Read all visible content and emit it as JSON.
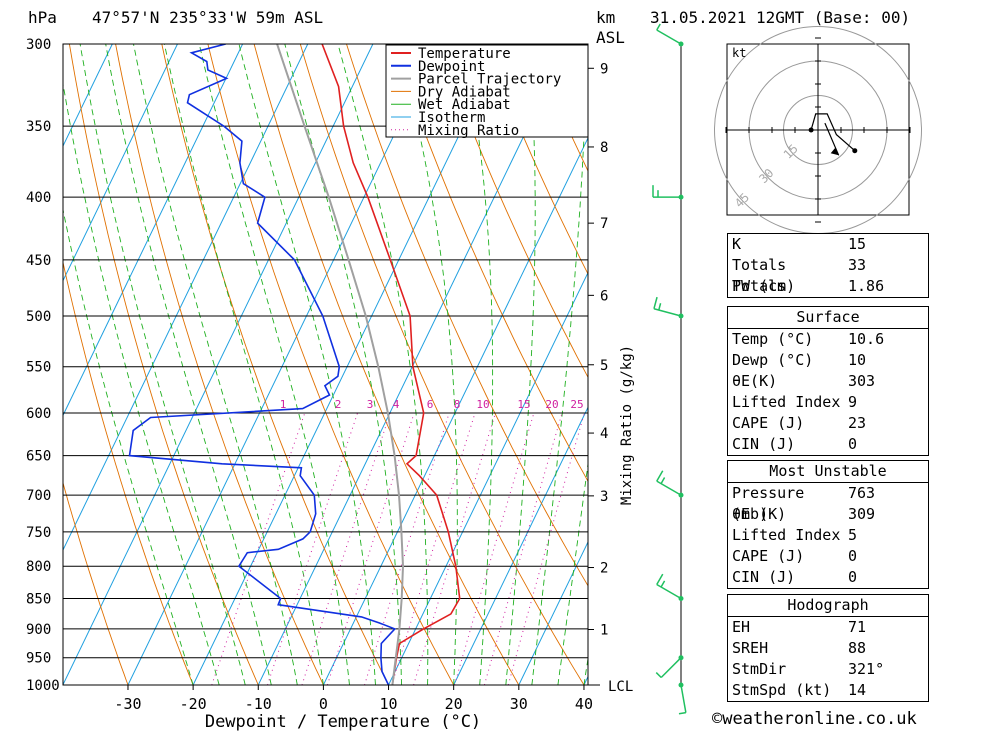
{
  "header": {
    "pressure_unit": "hPa",
    "location": "47°57'N  235°33'W  59m  ASL",
    "km_unit": "km",
    "asl": "ASL",
    "datetime": "31.05.2021  12GMT  (Base: 00)"
  },
  "chart_data": {
    "type": "line",
    "title": "",
    "xlabel": "Dewpoint / Temperature (°C)",
    "ylabel": "hPa",
    "xlim": [
      -40,
      40
    ],
    "ylim": [
      1000,
      300
    ],
    "pressure_ticks": [
      300,
      350,
      400,
      450,
      500,
      550,
      600,
      650,
      700,
      750,
      800,
      850,
      900,
      950,
      1000
    ],
    "temp_ticks": [
      -30,
      -20,
      -10,
      0,
      10,
      20,
      30,
      40
    ],
    "km_ticks": [
      "1",
      "2",
      "3",
      "4",
      "5",
      "6",
      "7",
      "8",
      "9"
    ],
    "lcl_label": "LCL",
    "mixing_ratio_axis_label": "Mixing Ratio (g/kg)",
    "mixing_ratio_labels": [
      "1",
      "2",
      "3",
      "4",
      "6",
      "8",
      "10",
      "15",
      "20",
      "25"
    ],
    "legend": [
      "Temperature",
      "Dewpoint",
      "Parcel Trajectory",
      "Dry Adiabat",
      "Wet Adiabat",
      "Isotherm",
      "Mixing Ratio"
    ],
    "colors": {
      "temperature": "#e02020",
      "dewpoint": "#1030e0",
      "parcel": "#a0a0a0",
      "dry_adiabat": "#e07000",
      "wet_adiabat": "#20b020",
      "isotherm": "#20a0e0",
      "mixing_ratio": "#d020a0",
      "wind": "#20c060"
    },
    "series": [
      {
        "name": "Temperature",
        "points": [
          [
            1000,
            10.6
          ],
          [
            950,
            9.2
          ],
          [
            925,
            8.6
          ],
          [
            900,
            11.2
          ],
          [
            875,
            14.3
          ],
          [
            850,
            14.5
          ],
          [
            800,
            11.5
          ],
          [
            750,
            7.8
          ],
          [
            700,
            3.3
          ],
          [
            675,
            -0.8
          ],
          [
            660,
            -3.6
          ],
          [
            650,
            -2.8
          ],
          [
            600,
            -4.8
          ],
          [
            550,
            -9.9
          ],
          [
            500,
            -14.1
          ],
          [
            450,
            -21.3
          ],
          [
            400,
            -29.4
          ],
          [
            375,
            -34.2
          ],
          [
            350,
            -38.4
          ],
          [
            325,
            -42.1
          ],
          [
            300,
            -47.8
          ]
        ]
      },
      {
        "name": "Dewpoint",
        "points": [
          [
            1000,
            10.0
          ],
          [
            975,
            8.0
          ],
          [
            950,
            6.8
          ],
          [
            925,
            5.8
          ],
          [
            900,
            6.8
          ],
          [
            890,
            4.0
          ],
          [
            880,
            0.8
          ],
          [
            860,
            -12.9
          ],
          [
            850,
            -13.0
          ],
          [
            800,
            -21.8
          ],
          [
            780,
            -21.5
          ],
          [
            775,
            -17.0
          ],
          [
            760,
            -14.0
          ],
          [
            750,
            -13.4
          ],
          [
            725,
            -13.9
          ],
          [
            700,
            -15.5
          ],
          [
            675,
            -19.1
          ],
          [
            665,
            -19.5
          ],
          [
            660,
            -32.0
          ],
          [
            650,
            -46.8
          ],
          [
            620,
            -48.1
          ],
          [
            605,
            -46.4
          ],
          [
            595,
            -23.7
          ],
          [
            580,
            -20.6
          ],
          [
            570,
            -22.0
          ],
          [
            560,
            -20.7
          ],
          [
            550,
            -21.2
          ],
          [
            500,
            -27.5
          ],
          [
            450,
            -36.0
          ],
          [
            420,
            -44.4
          ],
          [
            400,
            -45.2
          ],
          [
            390,
            -49.5
          ],
          [
            375,
            -51.6
          ],
          [
            360,
            -52.9
          ],
          [
            350,
            -56.8
          ],
          [
            335,
            -64.1
          ],
          [
            330,
            -64.4
          ],
          [
            320,
            -59.9
          ],
          [
            315,
            -63.4
          ],
          [
            310,
            -64.2
          ],
          [
            305,
            -67.2
          ],
          [
            300,
            -62.6
          ]
        ]
      },
      {
        "name": "Parcel Trajectory",
        "points": [
          [
            1000,
            10.6
          ],
          [
            900,
            7.5
          ],
          [
            850,
            5.6
          ],
          [
            800,
            3.4
          ],
          [
            750,
            0.6
          ],
          [
            700,
            -2.5
          ],
          [
            650,
            -6.1
          ],
          [
            600,
            -10.3
          ],
          [
            550,
            -15.2
          ],
          [
            500,
            -20.9
          ],
          [
            450,
            -27.7
          ],
          [
            400,
            -35.4
          ],
          [
            350,
            -44.4
          ],
          [
            300,
            -54.7
          ]
        ]
      }
    ],
    "wind_barbs": [
      {
        "pressure": 1000,
        "dir_deg": 170,
        "speed_kt": 5
      },
      {
        "pressure": 950,
        "dir_deg": 225,
        "speed_kt": 5
      },
      {
        "pressure": 850,
        "dir_deg": 300,
        "speed_kt": 15
      },
      {
        "pressure": 700,
        "dir_deg": 300,
        "speed_kt": 15
      },
      {
        "pressure": 500,
        "dir_deg": 285,
        "speed_kt": 15
      },
      {
        "pressure": 400,
        "dir_deg": 270,
        "speed_kt": 15
      },
      {
        "pressure": 300,
        "dir_deg": 300,
        "speed_kt": 5
      }
    ],
    "hodograph": {
      "unit_label": "kt",
      "ring_labels": [
        "15",
        "30",
        "45"
      ],
      "points_kt": [
        [
          -3,
          0
        ],
        [
          -1,
          7
        ],
        [
          4,
          7
        ],
        [
          8,
          -2
        ],
        [
          16,
          -9
        ]
      ],
      "storm_motion_kt": [
        9,
        -11
      ]
    }
  },
  "indices": {
    "general": [
      {
        "label": "K",
        "value": "15"
      },
      {
        "label": "Totals Totals",
        "value": "33"
      },
      {
        "label": "PW (cm)",
        "value": "1.86"
      }
    ],
    "surface_title": "Surface",
    "surface": [
      {
        "label": "Temp (°C)",
        "value": "10.6"
      },
      {
        "label": "Dewp (°C)",
        "value": "10"
      },
      {
        "label": "θE(K)",
        "value": "303"
      },
      {
        "label": "Lifted Index",
        "value": "9"
      },
      {
        "label": "CAPE (J)",
        "value": "23"
      },
      {
        "label": "CIN (J)",
        "value": "0"
      }
    ],
    "mu_title": "Most Unstable",
    "mu": [
      {
        "label": "Pressure (mb)",
        "value": "763"
      },
      {
        "label": "θE (K)",
        "value": "309"
      },
      {
        "label": "Lifted Index",
        "value": "5"
      },
      {
        "label": "CAPE (J)",
        "value": "0"
      },
      {
        "label": "CIN (J)",
        "value": "0"
      }
    ],
    "hodo_title": "Hodograph",
    "hodo": [
      {
        "label": "EH",
        "value": "71"
      },
      {
        "label": "SREH",
        "value": "88"
      },
      {
        "label": "StmDir",
        "value": "321°"
      },
      {
        "label": "StmSpd (kt)",
        "value": "14"
      }
    ]
  },
  "copyright": "©weatheronline.co.uk"
}
